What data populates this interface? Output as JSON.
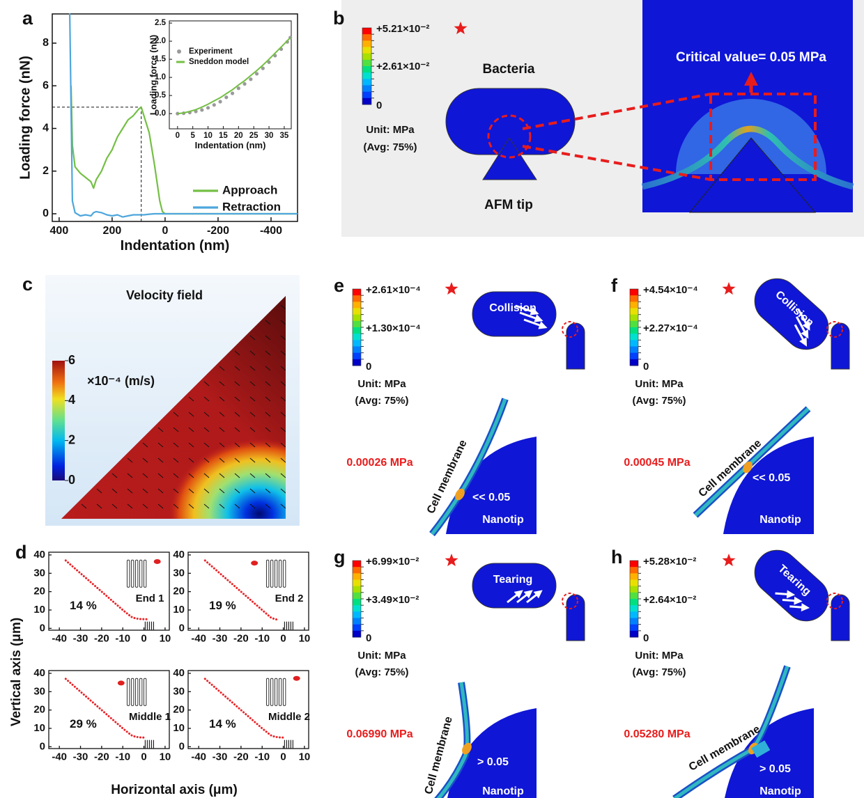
{
  "panel_letters": [
    "a",
    "b",
    "c",
    "d"
  ],
  "chart_data": [
    {
      "type": "line",
      "xlabel": "Indentation (nm)",
      "ylabel": "Loading force (nN)",
      "x": [
        360,
        355,
        350,
        340,
        320,
        300,
        280,
        270,
        260,
        240,
        220,
        200,
        180,
        160,
        140,
        120,
        100,
        90,
        80,
        60,
        40,
        20,
        10,
        0,
        -100,
        -200,
        -300,
        -400,
        -500
      ],
      "series": [
        {
          "name": "Approach",
          "color": "#74bf44",
          "values": [
            null,
            6,
            3.2,
            2.2,
            1.9,
            1.7,
            1.5,
            1.2,
            1.6,
            2.0,
            2.6,
            3.0,
            3.6,
            4.0,
            4.4,
            4.6,
            4.9,
            5.0,
            4.6,
            3.8,
            2.3,
            0.6,
            0.1,
            0,
            0,
            0,
            0,
            0,
            0
          ]
        },
        {
          "name": "Retraction",
          "color": "#4ea6dc",
          "values": [
            9.4,
            5,
            0.6,
            0.05,
            -0.1,
            -0.05,
            -0.1,
            0.05,
            0.1,
            0.05,
            -0.05,
            -0.1,
            -0.05,
            -0.15,
            -0.1,
            -0.05,
            -0.05,
            -0.05,
            -0.05,
            -0.02,
            0,
            0,
            0,
            0,
            0,
            0,
            0,
            0,
            0
          ]
        }
      ],
      "xlim": [
        426,
        -500
      ],
      "xticks": [
        400,
        200,
        0,
        -200,
        -400
      ],
      "ylim": [
        -0.36,
        9.37
      ],
      "yticks": [
        0,
        2,
        4,
        6,
        8
      ],
      "reference": {
        "x": 90,
        "y": 5
      },
      "legend": "lower right"
    },
    {
      "type": "line",
      "xlabel": "Indentation (nm)",
      "ylabel": "Loading force (nN)",
      "x": [
        0,
        2,
        4,
        6,
        8,
        10,
        12,
        14,
        16,
        18,
        20,
        22,
        24,
        26,
        28,
        30,
        32,
        34,
        36,
        37
      ],
      "series": [
        {
          "name": "Experiment",
          "color": "#9a9a9a",
          "marker": "circle",
          "values": [
            0.0,
            0.01,
            0.03,
            0.06,
            0.1,
            0.16,
            0.24,
            0.33,
            0.45,
            0.56,
            0.7,
            0.82,
            0.95,
            1.1,
            1.25,
            1.42,
            1.6,
            1.78,
            1.98,
            2.1
          ]
        },
        {
          "name": "Sneddon model",
          "color": "#74bf44",
          "values": [
            0,
            0.02,
            0.06,
            0.11,
            0.18,
            0.26,
            0.35,
            0.44,
            0.55,
            0.66,
            0.79,
            0.91,
            1.05,
            1.19,
            1.34,
            1.5,
            1.67,
            1.84,
            2.01,
            2.1
          ]
        }
      ],
      "xlim": [
        -2.7,
        37.3
      ],
      "xticks": [
        0,
        5,
        10,
        15,
        20,
        25,
        30,
        35
      ],
      "ylim": [
        -0.42,
        2.56
      ],
      "yticks": [
        {
          "value": 0,
          "label": "0.0"
        },
        {
          "value": 0.5,
          "label": "0.5"
        },
        {
          "value": 1,
          "label": "1.0"
        },
        {
          "value": 1.5,
          "label": "1.5"
        },
        {
          "value": 2,
          "label": "2.0"
        },
        {
          "value": 2.5,
          "label": "2.5"
        }
      ],
      "legend": "upper left"
    },
    {
      "type": "line",
      "label": "End 1",
      "annotation": "14 %",
      "color": "#e8262a",
      "x": [
        -37,
        -30,
        -20,
        -10,
        -6,
        -4,
        -2,
        0,
        2
      ],
      "values": [
        37,
        30,
        20,
        10,
        6.3,
        5.4,
        5.1,
        5,
        5
      ],
      "xlim": [
        -45,
        12
      ],
      "xticks": [
        -40,
        -30,
        -20,
        -10,
        0,
        10
      ],
      "ylim": [
        -1,
        41.5
      ],
      "yticks": [
        0,
        10,
        20,
        30,
        40
      ]
    },
    {
      "type": "line",
      "label": "End 2",
      "annotation": "19 %",
      "color": "#e8262a",
      "x": [
        -37,
        -30,
        -20,
        -10,
        -6,
        -4,
        -3
      ],
      "values": [
        37,
        30,
        20,
        10,
        6,
        5,
        4.8
      ],
      "xlim": [
        -45,
        12
      ],
      "xticks": [
        -40,
        -30,
        -20,
        -10,
        0,
        10
      ],
      "ylim": [
        -1,
        41.5
      ],
      "yticks": [
        0,
        10,
        20,
        30,
        40
      ]
    },
    {
      "type": "line",
      "label": "Middle 1",
      "annotation": "29 %",
      "color": "#e8262a",
      "x": [
        -37,
        -30,
        -20,
        -10,
        -6,
        -4,
        -2,
        0
      ],
      "values": [
        37,
        30,
        20,
        10,
        6.3,
        5.4,
        5.1,
        5
      ],
      "xlim": [
        -45,
        12
      ],
      "xticks": [
        -40,
        -30,
        -20,
        -10,
        0,
        10
      ],
      "ylim": [
        -1,
        41.5
      ],
      "yticks": [
        0,
        10,
        20,
        30,
        40
      ]
    },
    {
      "type": "line",
      "label": "Middle 2",
      "annotation": "14 %",
      "color": "#e8262a",
      "x": [
        -37,
        -30,
        -20,
        -10,
        -6,
        -4,
        -2,
        0,
        1
      ],
      "values": [
        37,
        30,
        20,
        10,
        6.3,
        5.4,
        5.1,
        5,
        5
      ],
      "xlim": [
        -45,
        12
      ],
      "xticks": [
        -40,
        -30,
        -20,
        -10,
        0,
        10
      ],
      "ylim": [
        -1,
        41.5
      ],
      "yticks": [
        0,
        10,
        20,
        30,
        40
      ]
    }
  ],
  "panel_b": {
    "max": "+5.21×10⁻²",
    "mid": "+2.61×10⁻²",
    "zero": "0",
    "unit": "Unit: MPa",
    "avg": "(Avg: 75%)",
    "bacteria": "Bacteria",
    "tip": "AFM tip",
    "critical": "Critical value= 0.05 MPa"
  },
  "panel_c": {
    "title": "Velocity field",
    "unit": "×10⁻⁴ (m/s)",
    "lim": [
      0,
      6
    ],
    "ticks": [
      0,
      2,
      4,
      6
    ]
  },
  "panel_d": {
    "xlabel": "Horizontal axis (μm)",
    "ylabel": "Vertical axis (μm)"
  },
  "stress_panels": [
    {
      "letter": "e",
      "max": "+2.61×10⁻⁴",
      "mid": "+1.30×10⁻⁴",
      "zero": "0",
      "unit": "Unit: MPa",
      "avg": "(Avg: 75%)",
      "action": "Collision",
      "stress": "0.00026 MPa",
      "membrane": "Cell membrane",
      "comparison": "<< 0.05",
      "tip": "Nanotip"
    },
    {
      "letter": "f",
      "max": "+4.54×10⁻⁴",
      "mid": "+2.27×10⁻⁴",
      "zero": "0",
      "unit": "Unit: MPa",
      "avg": "(Avg: 75%)",
      "action": "Collision",
      "stress": "0.00045 MPa",
      "membrane": "Cell membrane",
      "comparison": "<< 0.05",
      "tip": "Nanotip"
    },
    {
      "letter": "g",
      "max": "+6.99×10⁻²",
      "mid": "+3.49×10⁻²",
      "zero": "0",
      "unit": "Unit: MPa",
      "avg": "(Avg: 75%)",
      "action": "Tearing",
      "stress": "0.06990 MPa",
      "membrane": "Cell membrane",
      "comparison": "> 0.05",
      "tip": "Nanotip"
    },
    {
      "letter": "h",
      "max": "+5.28×10⁻²",
      "mid": "+2.64×10⁻²",
      "zero": "0",
      "unit": "Unit: MPa",
      "avg": "(Avg: 75%)",
      "action": "Tearing",
      "stress": "0.05280 MPa",
      "membrane": "Cell membrane",
      "comparison": "> 0.05",
      "tip": "Nanotip"
    }
  ]
}
